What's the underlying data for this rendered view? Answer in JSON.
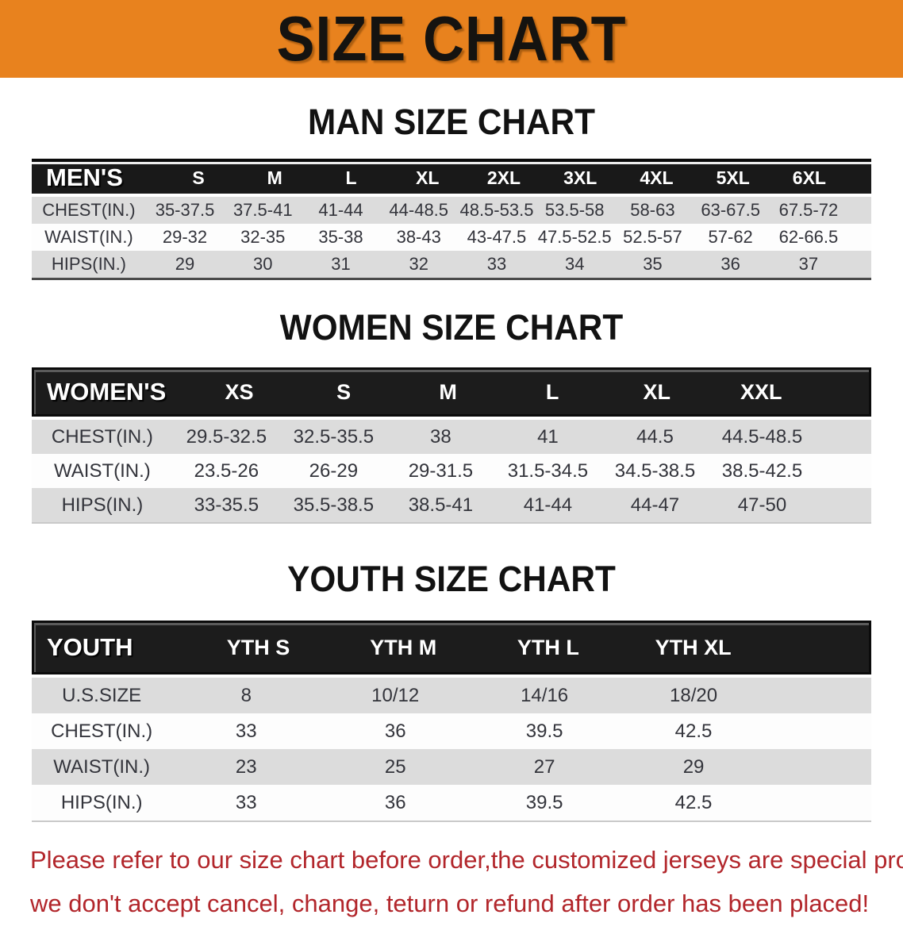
{
  "banner": {
    "title": "SIZE CHART"
  },
  "colors": {
    "banner_bg": "#E8821E",
    "header_band_bg": "#191919",
    "shaded_row_bg": "#DCDCDC",
    "notice_text": "#B2262B"
  },
  "sections": [
    {
      "heading": "MAN SIZE CHART",
      "table": {
        "label": "MEN'S",
        "sizes": [
          "S",
          "M",
          "L",
          "XL",
          "2XL",
          "3XL",
          "4XL",
          "5XL",
          "6XL"
        ],
        "rows": [
          {
            "label": "CHEST(IN.)",
            "values": [
              "35-37.5",
              "37.5-41",
              "41-44",
              "44-48.5",
              "48.5-53.5",
              "53.5-58",
              "58-63",
              "63-67.5",
              "67.5-72"
            ]
          },
          {
            "label": "WAIST(IN.)",
            "values": [
              "29-32",
              "32-35",
              "35-38",
              "38-43",
              "43-47.5",
              "47.5-52.5",
              "52.5-57",
              "57-62",
              "62-66.5"
            ]
          },
          {
            "label": "HIPS(IN.)",
            "values": [
              "29",
              "30",
              "31",
              "32",
              "33",
              "34",
              "35",
              "36",
              "37"
            ]
          }
        ]
      }
    },
    {
      "heading": "WOMEN SIZE CHART",
      "table": {
        "label": "WOMEN'S",
        "sizes": [
          "XS",
          "S",
          "M",
          "L",
          "XL",
          "XXL"
        ],
        "rows": [
          {
            "label": "CHEST(IN.)",
            "values": [
              "29.5-32.5",
              "32.5-35.5",
              "38",
              "41",
              "44.5",
              "44.5-48.5"
            ]
          },
          {
            "label": "WAIST(IN.)",
            "values": [
              "23.5-26",
              "26-29",
              "29-31.5",
              "31.5-34.5",
              "34.5-38.5",
              "38.5-42.5"
            ]
          },
          {
            "label": "HIPS(IN.)",
            "values": [
              "33-35.5",
              "35.5-38.5",
              "38.5-41",
              "41-44",
              "44-47",
              "47-50"
            ]
          }
        ]
      }
    },
    {
      "heading": "YOUTH SIZE CHART",
      "table": {
        "label": "YOUTH",
        "sizes": [
          "YTH S",
          "YTH M",
          "YTH L",
          "YTH XL"
        ],
        "rows": [
          {
            "label": "U.S.SIZE",
            "values": [
              "8",
              "10/12",
              "14/16",
              "18/20"
            ]
          },
          {
            "label": "CHEST(IN.)",
            "values": [
              "33",
              "36",
              "39.5",
              "42.5"
            ]
          },
          {
            "label": "WAIST(IN.)",
            "values": [
              "23",
              "25",
              "27",
              "29"
            ]
          },
          {
            "label": "HIPS(IN.)",
            "values": [
              "33",
              "36",
              "39.5",
              "42.5"
            ]
          }
        ]
      }
    }
  ],
  "footer": {
    "line1": "Please refer to our size chart before order,the customized jerseys are special products,",
    "line2": "we don't accept cancel, change, teturn or refund after order has been placed!"
  }
}
